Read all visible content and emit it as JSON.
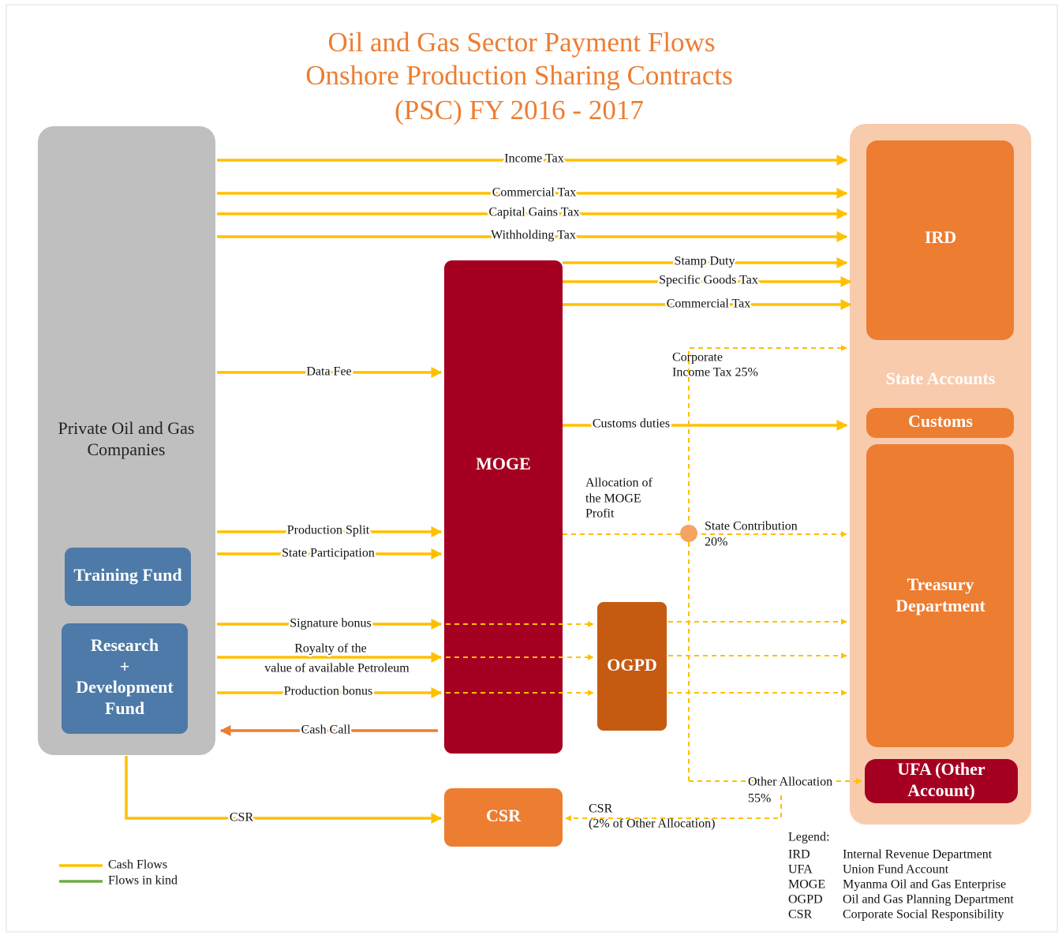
{
  "title": [
    "Oil and Gas Sector Payment Flows",
    "Onshore Production Sharing Contracts",
    "(PSC) FY 2016 - 2017"
  ],
  "nodes": {
    "companies": [
      "Private Oil and Gas",
      "Companies"
    ],
    "training_fund": "Training Fund",
    "rd_fund": [
      "Research",
      "+",
      "Development",
      "Fund"
    ],
    "moge": "MOGE",
    "ogpd": "OGPD",
    "csr": "CSR",
    "state_accounts": "State Accounts",
    "ird": "IRD",
    "customs": "Customs",
    "treasury": [
      "Treasury",
      "Department"
    ],
    "ufa": [
      "UFA (Other",
      "Account)"
    ]
  },
  "flows": {
    "income_tax": "Income Tax",
    "commercial_tax_1": "Commercial Tax",
    "capital_gains_tax": "Capital Gains Tax",
    "withholding_tax": "Withholding Tax",
    "stamp_duty": "Stamp Duty",
    "specific_goods_tax": "Specific Goods Tax",
    "commercial_tax_2": "Commercial Tax",
    "corporate_income_tax": [
      "Corporate",
      "Income Tax 25%"
    ],
    "data_fee": "Data Fee",
    "customs_duties": "Customs duties",
    "allocation": [
      "Allocation of",
      "the MOGE",
      "Profit"
    ],
    "state_contribution": [
      "State Contribution",
      "20%"
    ],
    "production_split": "Production Split",
    "state_participation": "State Participation",
    "signature_bonus": "Signature bonus",
    "royalty": [
      "Royalty of the",
      "value of available Petroleum"
    ],
    "production_bonus": "Production bonus",
    "cash_call": "Cash Call",
    "other_allocation": [
      "Other Allocation",
      "55%"
    ],
    "csr": "CSR",
    "csr_share": [
      "CSR",
      "(2% of Other Allocation)"
    ]
  },
  "legend": {
    "lines": [
      "Cash Flows",
      "Flows in kind"
    ],
    "heading": "Legend:",
    "terms": [
      {
        "abbr": "IRD",
        "meaning": "Internal Revenue Department"
      },
      {
        "abbr": "UFA",
        "meaning": "Union Fund Account"
      },
      {
        "abbr": "MOGE",
        "meaning": "Myanma Oil and Gas Enterprise"
      },
      {
        "abbr": "OGPD",
        "meaning": "Oil and Gas Planning Department"
      },
      {
        "abbr": "CSR",
        "meaning": "Corporate Social Responsibility"
      }
    ]
  }
}
